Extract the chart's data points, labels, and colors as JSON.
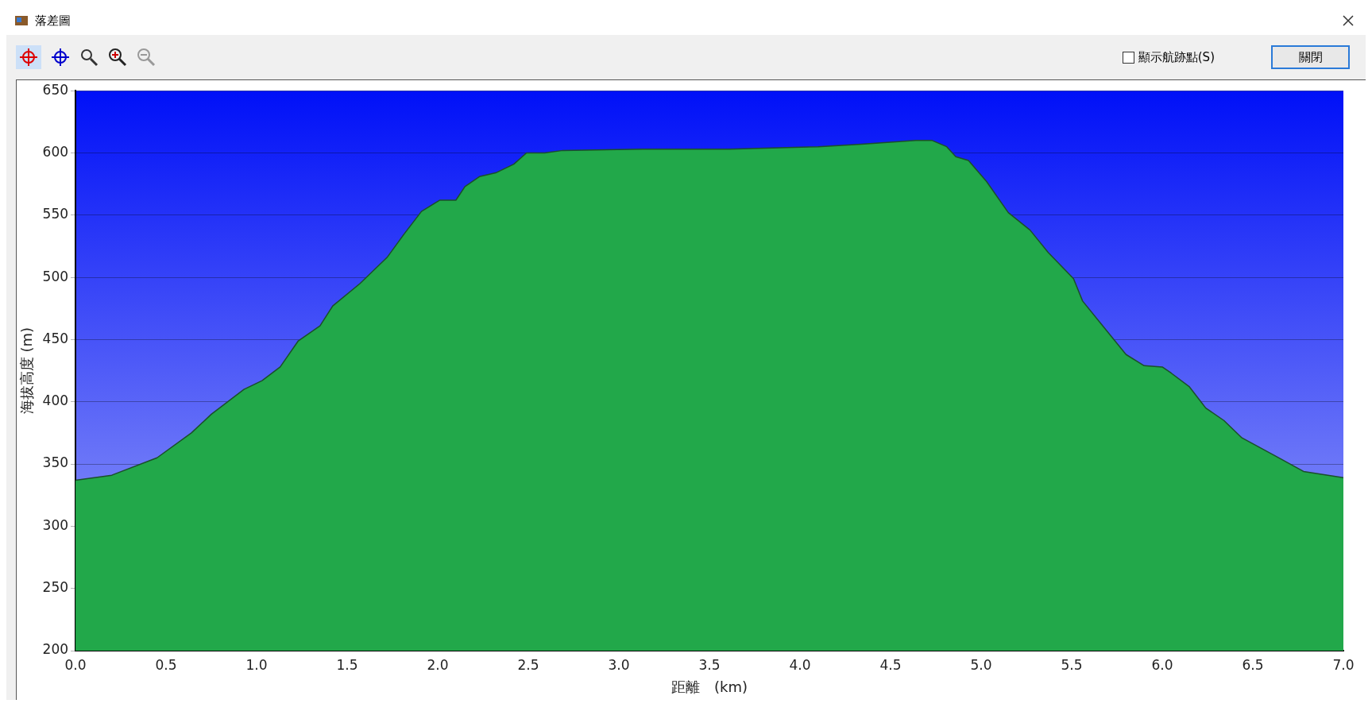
{
  "chart_data": {
    "type": "area",
    "title": "落差圖",
    "xlabel": "距離　(km)",
    "ylabel": "海拔高度 (m)",
    "annotations": [
      "顯示航跡點(S)",
      "關閉"
    ],
    "x": [
      0,
      0.2,
      0.45,
      0.64,
      0.75,
      0.93,
      1.03,
      1.13,
      1.23,
      1.35,
      1.42,
      1.57,
      1.72,
      1.81,
      1.91,
      2.01,
      2.1,
      2.15,
      2.23,
      2.32,
      2.42,
      2.49,
      2.59,
      2.69,
      3.13,
      3.61,
      4.1,
      4.34,
      4.64,
      4.73,
      4.81,
      4.86,
      4.93,
      5.03,
      5.15,
      5.27,
      5.37,
      5.51,
      5.56,
      5.66,
      5.8,
      5.9,
      6.0,
      6.05,
      6.15,
      6.24,
      6.34,
      6.44,
      6.63,
      6.78,
      7.0
    ],
    "series": [
      {
        "color": "#22a84a",
        "values": [
          337,
          341,
          355,
          375,
          390,
          410,
          417,
          428,
          449,
          461,
          477,
          495,
          516,
          534,
          553,
          562,
          562,
          573,
          581,
          584,
          591,
          600,
          600,
          602,
          603,
          603,
          605,
          607,
          610,
          610,
          605,
          597,
          594,
          577,
          552,
          538,
          520,
          499,
          481,
          463,
          438,
          429,
          428,
          423,
          412,
          395,
          385,
          371,
          356,
          344,
          339
        ]
      }
    ],
    "xlim": [
      0,
      7
    ],
    "xticks": [
      {
        "value": 0,
        "label": "0.0"
      },
      {
        "value": 0.5,
        "label": "0.5"
      },
      {
        "value": 1,
        "label": "1.0"
      },
      {
        "value": 1.5,
        "label": "1.5"
      },
      {
        "value": 2,
        "label": "2.0"
      },
      {
        "value": 2.5,
        "label": "2.5"
      },
      {
        "value": 3,
        "label": "3.0"
      },
      {
        "value": 3.5,
        "label": "3.5"
      },
      {
        "value": 4,
        "label": "4.0"
      },
      {
        "value": 4.5,
        "label": "4.5"
      },
      {
        "value": 5,
        "label": "5.0"
      },
      {
        "value": 5.5,
        "label": "5.5"
      },
      {
        "value": 6,
        "label": "6.0"
      },
      {
        "value": 6.5,
        "label": "6.5"
      },
      {
        "value": 7,
        "label": "7.0"
      }
    ],
    "ylim": [
      200,
      650
    ],
    "yticks": [
      200,
      250,
      300,
      350,
      400,
      450,
      500,
      550,
      600,
      650
    ],
    "grid": "y",
    "legend": false
  }
}
